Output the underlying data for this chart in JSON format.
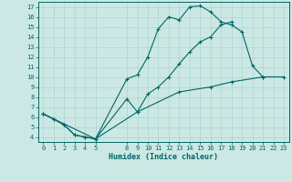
{
  "xlabel": "Humidex (Indice chaleur)",
  "bg_color": "#cce8e4",
  "line_color": "#006666",
  "grid_color": "#aad4d0",
  "xlim": [
    -0.5,
    23.5
  ],
  "ylim": [
    3.5,
    17.5
  ],
  "xticks": [
    0,
    1,
    2,
    3,
    4,
    5,
    8,
    9,
    10,
    11,
    12,
    13,
    14,
    15,
    16,
    17,
    18,
    19,
    20,
    21,
    22,
    23
  ],
  "yticks": [
    4,
    5,
    6,
    7,
    8,
    9,
    10,
    11,
    12,
    13,
    14,
    15,
    16,
    17
  ],
  "series": [
    {
      "x": [
        0,
        1,
        2,
        3,
        4,
        5,
        8,
        9,
        10,
        11,
        12,
        13,
        14,
        15,
        16,
        17,
        18,
        19,
        20,
        21
      ],
      "y": [
        6.3,
        5.8,
        5.2,
        4.2,
        4.0,
        3.8,
        9.8,
        10.2,
        12.0,
        14.8,
        16.0,
        15.7,
        17.0,
        17.1,
        16.5,
        15.5,
        15.2,
        14.5,
        11.1,
        10.0
      ]
    },
    {
      "x": [
        0,
        1,
        2,
        3,
        4,
        5,
        8,
        9,
        10,
        11,
        12,
        13,
        14,
        15,
        16,
        17,
        18
      ],
      "y": [
        6.3,
        5.8,
        5.2,
        4.2,
        4.0,
        3.8,
        7.8,
        6.5,
        8.3,
        9.0,
        10.0,
        11.3,
        12.5,
        13.5,
        14.0,
        15.2,
        15.5
      ]
    },
    {
      "x": [
        0,
        5,
        9,
        13,
        16,
        18,
        21,
        23
      ],
      "y": [
        6.3,
        3.8,
        6.5,
        8.5,
        9.0,
        9.5,
        10.0,
        10.0
      ]
    }
  ]
}
